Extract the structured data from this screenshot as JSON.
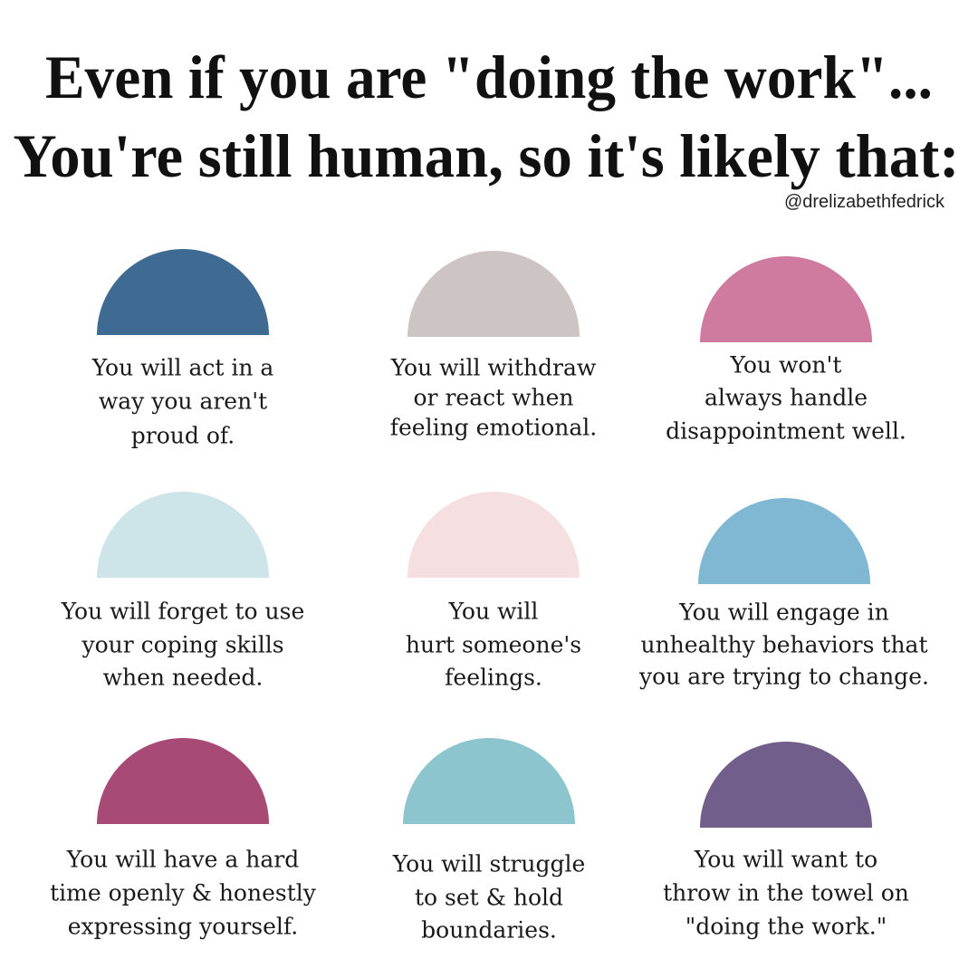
{
  "header": {
    "title_lines": [
      "Even if you are \"doing the work\"...",
      "You're still human, so it's likely that:"
    ],
    "handle": "@drelizabethfedrick"
  },
  "items": [
    {
      "lines": [
        "You will act in a",
        "way you aren't",
        "proud of."
      ]
    },
    {
      "lines": [
        "You will withdraw",
        "or react when",
        "feeling emotional."
      ]
    },
    {
      "lines": [
        "You won't",
        "always handle",
        "disappointment well."
      ]
    },
    {
      "lines": [
        "You will forget to use",
        "your coping skills",
        "when needed."
      ]
    },
    {
      "lines": [
        "You will",
        "hurt someone's",
        "feelings."
      ]
    },
    {
      "lines": [
        "You will engage in",
        "unhealthy behaviors that",
        "you are trying to change."
      ]
    },
    {
      "lines": [
        "You will have a hard",
        "time openly & honestly",
        "expressing yourself."
      ]
    },
    {
      "lines": [
        "You will struggle",
        "to set & hold",
        "boundaries."
      ]
    },
    {
      "lines": [
        "You will want to",
        "throw in the towel on",
        "\"doing the work.\""
      ]
    }
  ]
}
